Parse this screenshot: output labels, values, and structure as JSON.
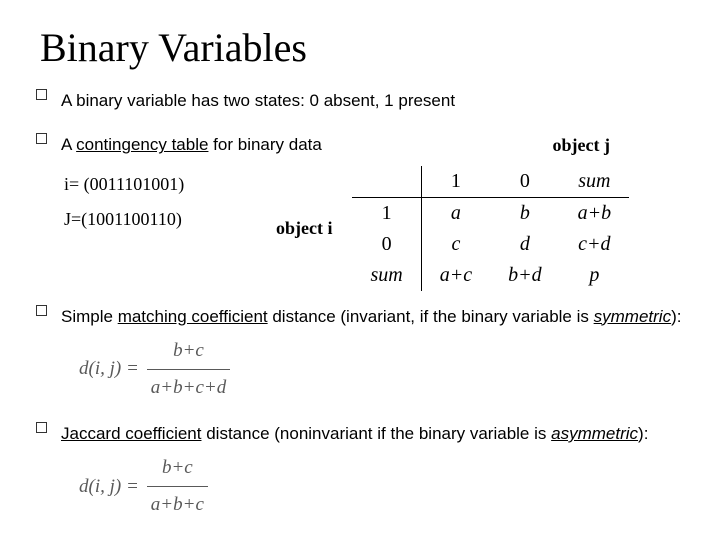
{
  "title": "Binary Variables",
  "bullets": {
    "b1": "A binary variable has two states: 0 absent, 1 present",
    "b2_pre": "A ",
    "b2_u": "contingency table",
    "b2_post": " for binary data",
    "b3_pre": "Simple ",
    "b3_u1": "matching coefficient",
    "b3_mid": " distance (invariant, if the binary variable is ",
    "b3_u2": "symmetric",
    "b3_post": "):",
    "b4_pre": "",
    "b4_u1": "Jaccard coefficient",
    "b4_mid": " distance (noninvariant if the binary variable is ",
    "b4_u2": "asymmetric",
    "b4_post": "):"
  },
  "examples": {
    "i": "i= (0011101001)",
    "j": "J=(1001100110)"
  },
  "labels": {
    "object_j": "object j",
    "object_i": "object i"
  },
  "table": {
    "h1": "1",
    "h0": "0",
    "hsum": "sum",
    "r1": "1",
    "a": "a",
    "b": "b",
    "ab": "a+b",
    "r0": "0",
    "c": "c",
    "d": "d",
    "cd": "c+d",
    "rsum": "sum",
    "ac": "a+c",
    "bd": "b+d",
    "p": "p"
  },
  "formulas": {
    "dij": "d(i, j) =",
    "smc_num": "b+c",
    "smc_den": "a+b+c+d",
    "jac_num": "b+c",
    "jac_den": "a+b+c"
  },
  "style": {
    "title_font": "Times New Roman",
    "title_size_pt": 40,
    "body_font": "Verdana",
    "body_size_pt": 17,
    "formula_color": "#595959",
    "bullet_border": "#333333",
    "background": "#ffffff",
    "table_border": "#000000"
  }
}
